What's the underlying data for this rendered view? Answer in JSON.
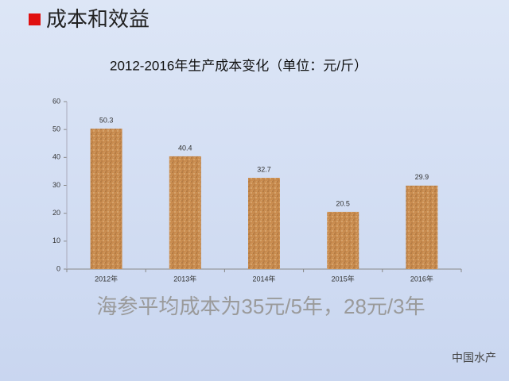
{
  "heading": "成本和效益",
  "chart_data": {
    "type": "bar",
    "title": "2012-2016年生产成本变化（单位：元/斤）",
    "categories": [
      "2012年",
      "2013年",
      "2014年",
      "2015年",
      "2016年"
    ],
    "values": [
      50.3,
      40.4,
      32.7,
      20.5,
      29.9
    ],
    "color": "#c98c4f",
    "ylim": [
      0,
      60
    ],
    "yticks": [
      0,
      10,
      20,
      30,
      40,
      50,
      60
    ],
    "grid": false
  },
  "note": "海参平均成本为35元/5年，28元/3年",
  "watermark": "中国水产"
}
